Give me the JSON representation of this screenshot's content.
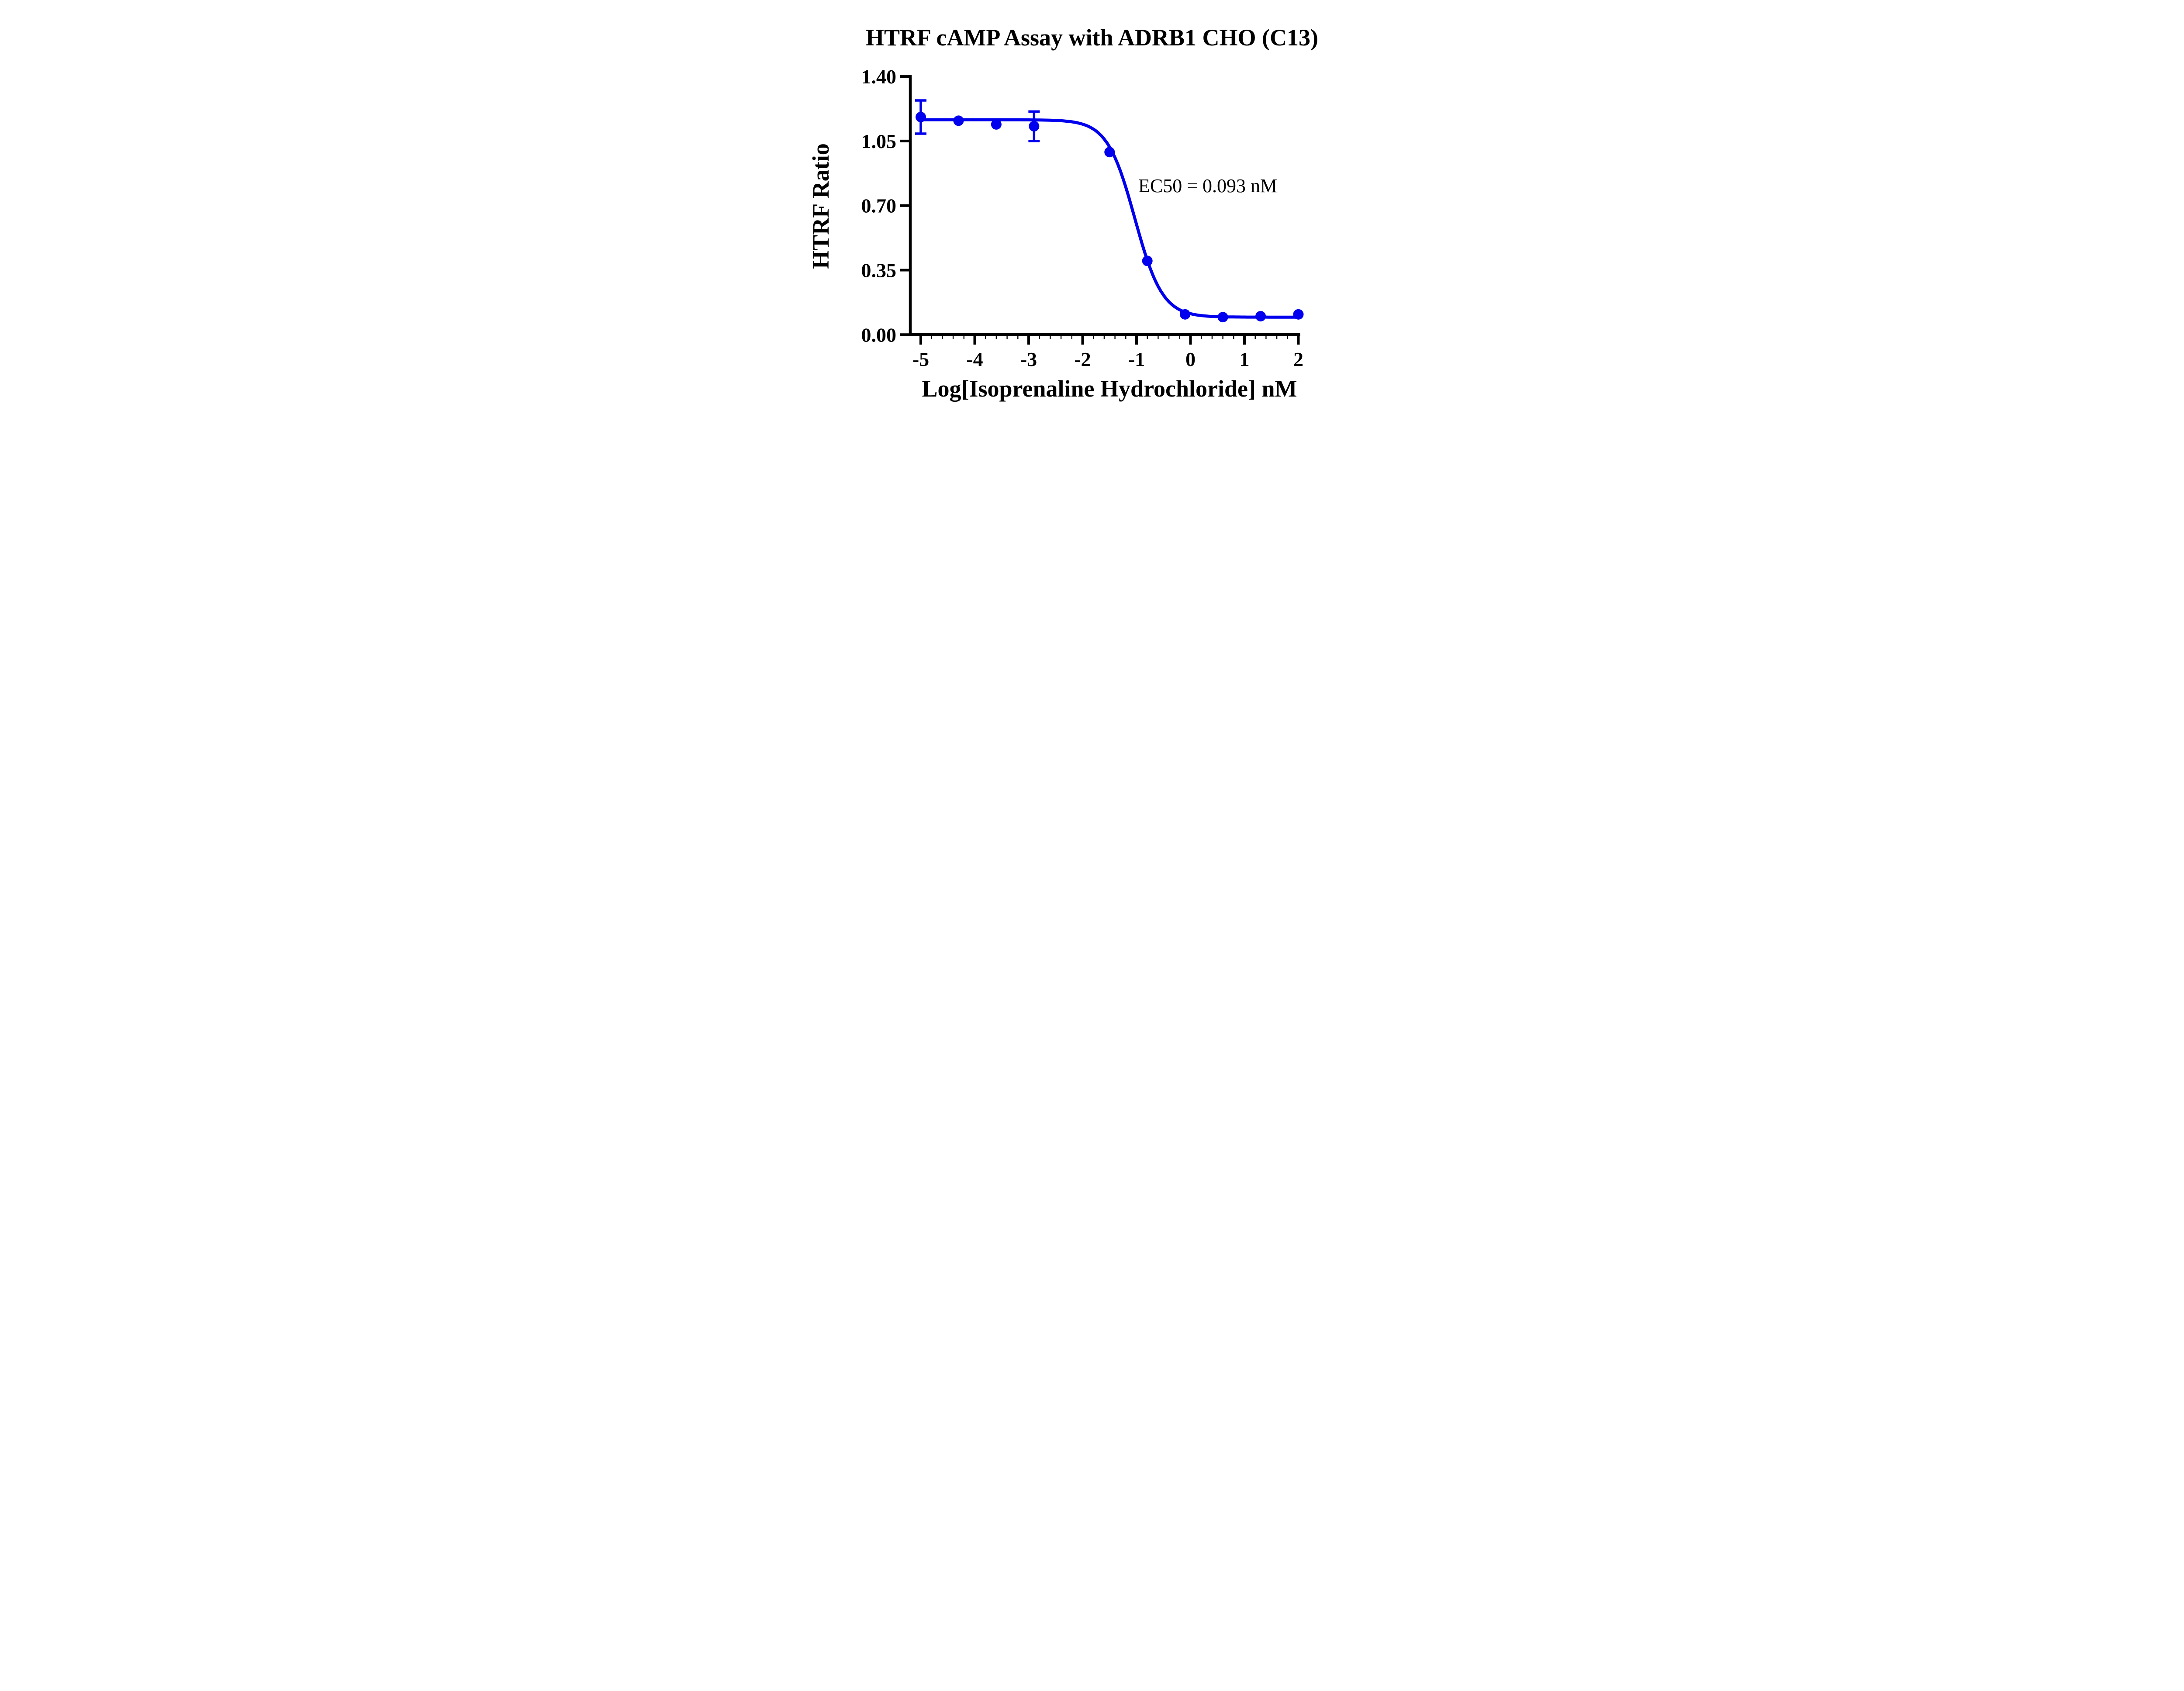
{
  "page": {
    "background": "#ffffff"
  },
  "chart_data": {
    "type": "scatter",
    "title": "HTRF cAMP Assay with ADRB1 CHO (C13)",
    "xlabel": "Log[Isoprenaline Hydrochloride] nM",
    "ylabel": "HTRF Ratio",
    "annotation": "EC50 = 0.093 nM",
    "ec50_nM": 0.093,
    "grid": false,
    "legend": false,
    "axis_color": "#000000",
    "x_axis": {
      "range": [
        -5,
        2
      ],
      "minor_tick_step": 0.2,
      "ticks": [
        {
          "v": -5,
          "label": "-5"
        },
        {
          "v": -4,
          "label": "-4"
        },
        {
          "v": -3,
          "label": "-3"
        },
        {
          "v": -2,
          "label": "-2"
        },
        {
          "v": -1,
          "label": "-1"
        },
        {
          "v": 0,
          "label": "0"
        },
        {
          "v": 1,
          "label": "1"
        },
        {
          "v": 2,
          "label": "2"
        }
      ]
    },
    "y_axis": {
      "range": [
        0,
        1.4
      ],
      "ticks": [
        {
          "v": 0.0,
          "label": "0.00"
        },
        {
          "v": 0.35,
          "label": "0.35"
        },
        {
          "v": 0.7,
          "label": "0.70"
        },
        {
          "v": 1.05,
          "label": "1.05"
        },
        {
          "v": 1.4,
          "label": "1.40"
        }
      ]
    },
    "series": [
      {
        "name": "Isoprenaline Hydrochloride",
        "color": "#0000EE",
        "marker": "circle",
        "points": [
          {
            "x": -5.0,
            "y": 1.18,
            "err": 0.09
          },
          {
            "x": -4.3,
            "y": 1.16
          },
          {
            "x": -3.6,
            "y": 1.14
          },
          {
            "x": -2.9,
            "y": 1.13,
            "err": 0.08
          },
          {
            "x": -1.5,
            "y": 0.99
          },
          {
            "x": -0.8,
            "y": 0.4
          },
          {
            "x": -0.1,
            "y": 0.11
          },
          {
            "x": 0.6,
            "y": 0.095
          },
          {
            "x": 1.3,
            "y": 0.1
          },
          {
            "x": 2.0,
            "y": 0.11
          }
        ],
        "fit": {
          "model": "4PL",
          "top": 1.165,
          "bottom": 0.095,
          "log_ec50": -1.0315,
          "hill_slope": 1.7
        }
      }
    ]
  }
}
